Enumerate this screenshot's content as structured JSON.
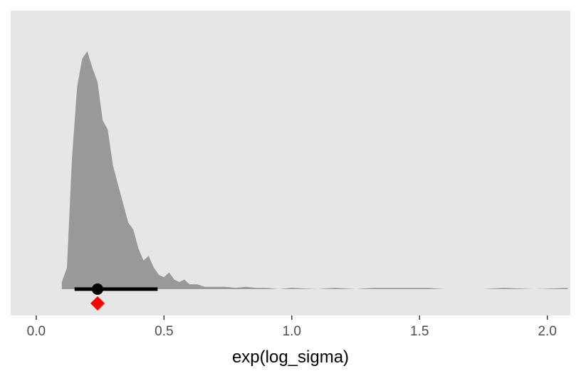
{
  "chart_data": {
    "type": "area",
    "title": "",
    "xlabel": "exp(log_sigma)",
    "ylabel": "",
    "xlim": [
      -0.1,
      2.09
    ],
    "ylim": [
      0,
      1.0
    ],
    "grid": false,
    "x_ticks": [
      0.0,
      0.5,
      1.0,
      1.5,
      2.0
    ],
    "x_tick_labels": [
      "0.0",
      "0.5",
      "1.0",
      "1.5",
      "2.0"
    ],
    "colors": {
      "panel_background": "#e6e6e6",
      "density_fill": "#999999",
      "interval": "#000000",
      "point_estimate": "#000000",
      "marker": "#ff0000"
    },
    "series": [
      {
        "x": [
          0.1,
          0.12,
          0.14,
          0.16,
          0.18,
          0.2,
          0.22,
          0.24,
          0.26,
          0.28,
          0.3,
          0.32,
          0.34,
          0.36,
          0.38,
          0.4,
          0.42,
          0.44,
          0.46,
          0.48,
          0.5,
          0.52,
          0.54,
          0.56,
          0.58,
          0.6,
          0.63,
          0.66,
          0.7,
          0.74,
          0.78,
          0.82,
          0.86,
          0.9,
          0.95,
          1.0,
          1.1,
          1.17,
          1.25,
          1.32,
          1.38,
          1.46,
          1.53,
          1.6,
          1.75,
          1.83,
          1.95,
          2.08
        ],
        "values": [
          0.03,
          0.09,
          0.55,
          0.85,
          0.97,
          1.0,
          0.93,
          0.87,
          0.71,
          0.67,
          0.52,
          0.44,
          0.36,
          0.28,
          0.25,
          0.17,
          0.12,
          0.14,
          0.09,
          0.06,
          0.05,
          0.07,
          0.04,
          0.03,
          0.04,
          0.02,
          0.02,
          0.01,
          0.01,
          0.01,
          0.005,
          0.01,
          0.005,
          0.005,
          0.0,
          0.005,
          0.0,
          0.005,
          0.0,
          0.005,
          0.005,
          0.005,
          0.005,
          0.0,
          0.0,
          0.005,
          0.0,
          0.005
        ]
      }
    ],
    "interval": {
      "low": 0.15,
      "high": 0.475
    },
    "point_estimate": 0.24,
    "marker_value": 0.24
  }
}
